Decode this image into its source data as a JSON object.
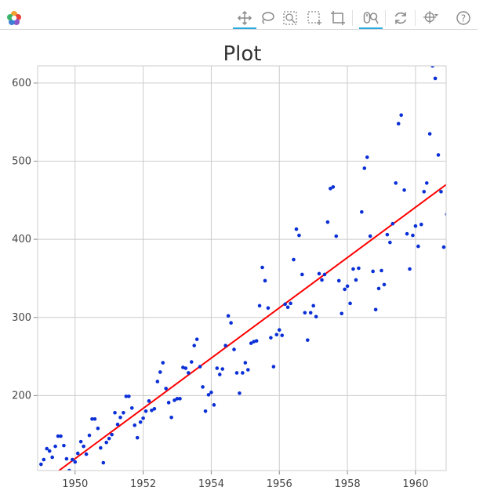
{
  "toolbar": {
    "logo": "bokeh-logo",
    "tools": [
      {
        "name": "pan-tool",
        "icon": "pan-icon",
        "active": true
      },
      {
        "name": "lasso-select-tool",
        "icon": "lasso-icon",
        "active": false
      },
      {
        "name": "zoom-select-tool",
        "icon": "zoom-select-icon",
        "active": false
      },
      {
        "name": "box-select-tool",
        "icon": "box-select-icon",
        "active": false
      },
      {
        "name": "box-zoom-tool",
        "icon": "box-zoom-icon",
        "active": false
      },
      {
        "name": "wheel-zoom-tool",
        "icon": "wheel-zoom-icon",
        "active": true
      },
      {
        "name": "reset-tool",
        "icon": "reset-icon",
        "active": false
      },
      {
        "name": "crosshair-tool",
        "icon": "crosshair-icon",
        "active": false
      },
      {
        "name": "help-tool",
        "icon": "help-icon",
        "active": false
      }
    ]
  },
  "chart_data": {
    "type": "scatter",
    "title": "Plot",
    "xlabel": "",
    "ylabel": "",
    "xlim": [
      1948.9,
      1960.9
    ],
    "ylim": [
      104,
      622
    ],
    "xticks": [
      1950,
      1952,
      1954,
      1956,
      1958,
      1960
    ],
    "yticks": [
      200,
      300,
      400,
      500,
      600
    ],
    "grid": true,
    "legend": "none",
    "colors": {
      "points": "#0a2fd6",
      "trend": "#ff0000",
      "grid": "#cccccc"
    },
    "series": [
      {
        "type": "scatter",
        "points": [
          [
            1949.0,
            112
          ],
          [
            1949.08,
            118
          ],
          [
            1949.17,
            132
          ],
          [
            1949.25,
            129
          ],
          [
            1949.33,
            121
          ],
          [
            1949.42,
            135
          ],
          [
            1949.5,
            148
          ],
          [
            1949.58,
            148
          ],
          [
            1949.67,
            136
          ],
          [
            1949.75,
            119
          ],
          [
            1949.83,
            104
          ],
          [
            1949.92,
            118
          ],
          [
            1950.0,
            115
          ],
          [
            1950.08,
            126
          ],
          [
            1950.17,
            141
          ],
          [
            1950.25,
            135
          ],
          [
            1950.33,
            125
          ],
          [
            1950.42,
            149
          ],
          [
            1950.5,
            170
          ],
          [
            1950.58,
            170
          ],
          [
            1950.67,
            158
          ],
          [
            1950.75,
            133
          ],
          [
            1950.83,
            114
          ],
          [
            1950.92,
            140
          ],
          [
            1951.0,
            145
          ],
          [
            1951.08,
            150
          ],
          [
            1951.17,
            178
          ],
          [
            1951.25,
            163
          ],
          [
            1951.33,
            172
          ],
          [
            1951.42,
            178
          ],
          [
            1951.5,
            199
          ],
          [
            1951.58,
            199
          ],
          [
            1951.67,
            184
          ],
          [
            1951.75,
            162
          ],
          [
            1951.83,
            146
          ],
          [
            1951.92,
            166
          ],
          [
            1952.0,
            171
          ],
          [
            1952.08,
            180
          ],
          [
            1952.17,
            193
          ],
          [
            1952.25,
            181
          ],
          [
            1952.33,
            183
          ],
          [
            1952.42,
            218
          ],
          [
            1952.5,
            230
          ],
          [
            1952.58,
            242
          ],
          [
            1952.67,
            209
          ],
          [
            1952.75,
            191
          ],
          [
            1952.83,
            172
          ],
          [
            1952.92,
            194
          ],
          [
            1953.0,
            196
          ],
          [
            1953.08,
            196
          ],
          [
            1953.17,
            236
          ],
          [
            1953.25,
            235
          ],
          [
            1953.33,
            229
          ],
          [
            1953.42,
            243
          ],
          [
            1953.5,
            264
          ],
          [
            1953.58,
            272
          ],
          [
            1953.67,
            237
          ],
          [
            1953.75,
            211
          ],
          [
            1953.83,
            180
          ],
          [
            1953.92,
            201
          ],
          [
            1954.0,
            204
          ],
          [
            1954.08,
            188
          ],
          [
            1954.17,
            235
          ],
          [
            1954.25,
            227
          ],
          [
            1954.33,
            234
          ],
          [
            1954.42,
            264
          ],
          [
            1954.5,
            302
          ],
          [
            1954.58,
            293
          ],
          [
            1954.67,
            259
          ],
          [
            1954.75,
            229
          ],
          [
            1954.83,
            203
          ],
          [
            1954.92,
            229
          ],
          [
            1955.0,
            242
          ],
          [
            1955.08,
            233
          ],
          [
            1955.17,
            267
          ],
          [
            1955.25,
            269
          ],
          [
            1955.33,
            270
          ],
          [
            1955.42,
            315
          ],
          [
            1955.5,
            364
          ],
          [
            1955.58,
            347
          ],
          [
            1955.67,
            312
          ],
          [
            1955.75,
            274
          ],
          [
            1955.83,
            237
          ],
          [
            1955.92,
            278
          ],
          [
            1956.0,
            284
          ],
          [
            1956.08,
            277
          ],
          [
            1956.17,
            317
          ],
          [
            1956.25,
            313
          ],
          [
            1956.33,
            318
          ],
          [
            1956.42,
            374
          ],
          [
            1956.5,
            413
          ],
          [
            1956.58,
            405
          ],
          [
            1956.67,
            355
          ],
          [
            1956.75,
            306
          ],
          [
            1956.83,
            271
          ],
          [
            1956.92,
            306
          ],
          [
            1957.0,
            315
          ],
          [
            1957.08,
            301
          ],
          [
            1957.17,
            356
          ],
          [
            1957.25,
            348
          ],
          [
            1957.33,
            355
          ],
          [
            1957.42,
            422
          ],
          [
            1957.5,
            465
          ],
          [
            1957.58,
            467
          ],
          [
            1957.67,
            404
          ],
          [
            1957.75,
            347
          ],
          [
            1957.83,
            305
          ],
          [
            1957.92,
            336
          ],
          [
            1958.0,
            340
          ],
          [
            1958.08,
            318
          ],
          [
            1958.17,
            362
          ],
          [
            1958.25,
            348
          ],
          [
            1958.33,
            363
          ],
          [
            1958.42,
            435
          ],
          [
            1958.5,
            491
          ],
          [
            1958.58,
            505
          ],
          [
            1958.67,
            404
          ],
          [
            1958.75,
            359
          ],
          [
            1958.83,
            310
          ],
          [
            1958.92,
            337
          ],
          [
            1959.0,
            360
          ],
          [
            1959.08,
            342
          ],
          [
            1959.17,
            406
          ],
          [
            1959.25,
            396
          ],
          [
            1959.33,
            420
          ],
          [
            1959.42,
            472
          ],
          [
            1959.5,
            548
          ],
          [
            1959.58,
            559
          ],
          [
            1959.67,
            463
          ],
          [
            1959.75,
            407
          ],
          [
            1959.83,
            362
          ],
          [
            1959.92,
            405
          ],
          [
            1960.0,
            417
          ],
          [
            1960.08,
            391
          ],
          [
            1960.17,
            419
          ],
          [
            1960.25,
            461
          ],
          [
            1960.33,
            472
          ],
          [
            1960.42,
            535
          ],
          [
            1960.5,
            622
          ],
          [
            1960.58,
            606
          ],
          [
            1960.67,
            508
          ],
          [
            1960.75,
            461
          ],
          [
            1960.83,
            390
          ],
          [
            1960.92,
            432
          ]
        ]
      },
      {
        "type": "line",
        "points": [
          [
            1949.0,
            87
          ],
          [
            1960.9,
            470
          ]
        ]
      }
    ]
  }
}
